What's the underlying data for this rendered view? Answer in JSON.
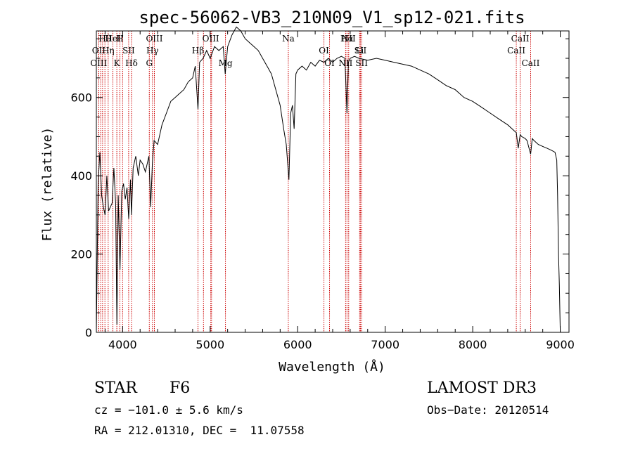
{
  "chart_data": {
    "type": "line",
    "title": "spec-56062-VB3_210N09_V1_sp12-021.fits",
    "xlabel": "Wavelength (Å)",
    "ylabel": "Flux (relative)",
    "xlim": [
      3700,
      9100
    ],
    "ylim": [
      0,
      770
    ],
    "x_ticks": [
      4000,
      5000,
      6000,
      7000,
      8000,
      9000
    ],
    "y_ticks": [
      0,
      200,
      400,
      600
    ],
    "grid": false,
    "series": [
      {
        "name": "spectrum",
        "x": [
          3700,
          3720,
          3740,
          3760,
          3780,
          3800,
          3820,
          3840,
          3860,
          3880,
          3900,
          3920,
          3935,
          3950,
          3970,
          3990,
          4010,
          4030,
          4050,
          4070,
          4090,
          4101,
          4120,
          4150,
          4180,
          4200,
          4230,
          4260,
          4300,
          4320,
          4340,
          4360,
          4400,
          4450,
          4500,
          4550,
          4600,
          4650,
          4700,
          4750,
          4800,
          4830,
          4861,
          4880,
          4920,
          4960,
          5000,
          5050,
          5100,
          5150,
          5172,
          5200,
          5250,
          5300,
          5350,
          5400,
          5450,
          5500,
          5550,
          5600,
          5650,
          5700,
          5750,
          5800,
          5840,
          5870,
          5890,
          5900,
          5920,
          5940,
          5960,
          5980,
          6000,
          6050,
          6100,
          6150,
          6200,
          6250,
          6300,
          6350,
          6400,
          6450,
          6500,
          6540,
          6563,
          6580,
          6600,
          6650,
          6700,
          6800,
          6900,
          7000,
          7100,
          7200,
          7300,
          7400,
          7500,
          7600,
          7700,
          7800,
          7900,
          8000,
          8100,
          8200,
          8300,
          8400,
          8498,
          8520,
          8542,
          8560,
          8600,
          8620,
          8662,
          8680,
          8700,
          8750,
          8800,
          8850,
          8900,
          8940,
          8960,
          8970,
          8980,
          8990,
          9000
        ],
        "values": [
          0,
          380,
          460,
          350,
          320,
          300,
          400,
          310,
          320,
          330,
          420,
          330,
          20,
          350,
          160,
          360,
          380,
          340,
          370,
          290,
          390,
          300,
          420,
          450,
          400,
          440,
          430,
          410,
          450,
          320,
          430,
          490,
          480,
          530,
          560,
          590,
          600,
          610,
          620,
          640,
          650,
          680,
          570,
          690,
          700,
          720,
          700,
          730,
          720,
          730,
          660,
          730,
          760,
          780,
          770,
          750,
          740,
          730,
          720,
          700,
          680,
          660,
          620,
          580,
          520,
          480,
          420,
          390,
          560,
          580,
          520,
          660,
          670,
          680,
          670,
          690,
          680,
          695,
          690,
          700,
          690,
          700,
          705,
          700,
          560,
          690,
          700,
          705,
          700,
          695,
          700,
          695,
          690,
          685,
          680,
          670,
          660,
          645,
          630,
          620,
          600,
          590,
          575,
          560,
          545,
          530,
          510,
          470,
          505,
          500,
          495,
          490,
          455,
          495,
          490,
          480,
          475,
          470,
          465,
          460,
          440,
          350,
          200,
          120,
          0
        ]
      }
    ],
    "lines": [
      {
        "label": "Hθ",
        "x": 3798
      },
      {
        "label": "OII",
        "x": 3727
      },
      {
        "label": "OIII",
        "x": 3727
      },
      {
        "label": "HeI",
        "x": 3889
      },
      {
        "label": "Hη",
        "x": 3835
      },
      {
        "label": "K",
        "x": 3934
      },
      {
        "label": "H",
        "x": 3969
      },
      {
        "label": "SII",
        "x": 4069
      },
      {
        "label": "Hδ",
        "x": 4102
      },
      {
        "label": "OIII",
        "x": 4363
      },
      {
        "label": "Hγ",
        "x": 4341
      },
      {
        "label": "G",
        "x": 4305
      },
      {
        "label": "OIII",
        "x": 5007
      },
      {
        "label": "Hβ",
        "x": 4861
      },
      {
        "label": "Mg",
        "x": 5175
      },
      {
        "label": "Na",
        "x": 5893
      },
      {
        "label": "OI",
        "x": 6300
      },
      {
        "label": "OI",
        "x": 6364
      },
      {
        "label": "Hα",
        "x": 6563
      },
      {
        "label": "SII",
        "x": 6717
      },
      {
        "label": "NII",
        "x": 6548
      },
      {
        "label": "NII",
        "x": 6583
      },
      {
        "label": "Li",
        "x": 6708
      },
      {
        "label": "SII",
        "x": 6731
      },
      {
        "label": "CaII",
        "x": 8542
      },
      {
        "label": "CaII",
        "x": 8498
      },
      {
        "label": "CaII",
        "x": 8662
      }
    ],
    "extra_lines_x": [
      3750,
      3771,
      4000,
      4924,
      5016
    ]
  },
  "info": {
    "object_class": "STAR",
    "subclass": "F6",
    "survey": "LAMOST DR3",
    "cz": "cz = −101.0 ± 5.6 km/s",
    "obs_date": "Obs−Date: 20120514",
    "coords": "RA = 212.01310, DEC =  11.07558"
  }
}
